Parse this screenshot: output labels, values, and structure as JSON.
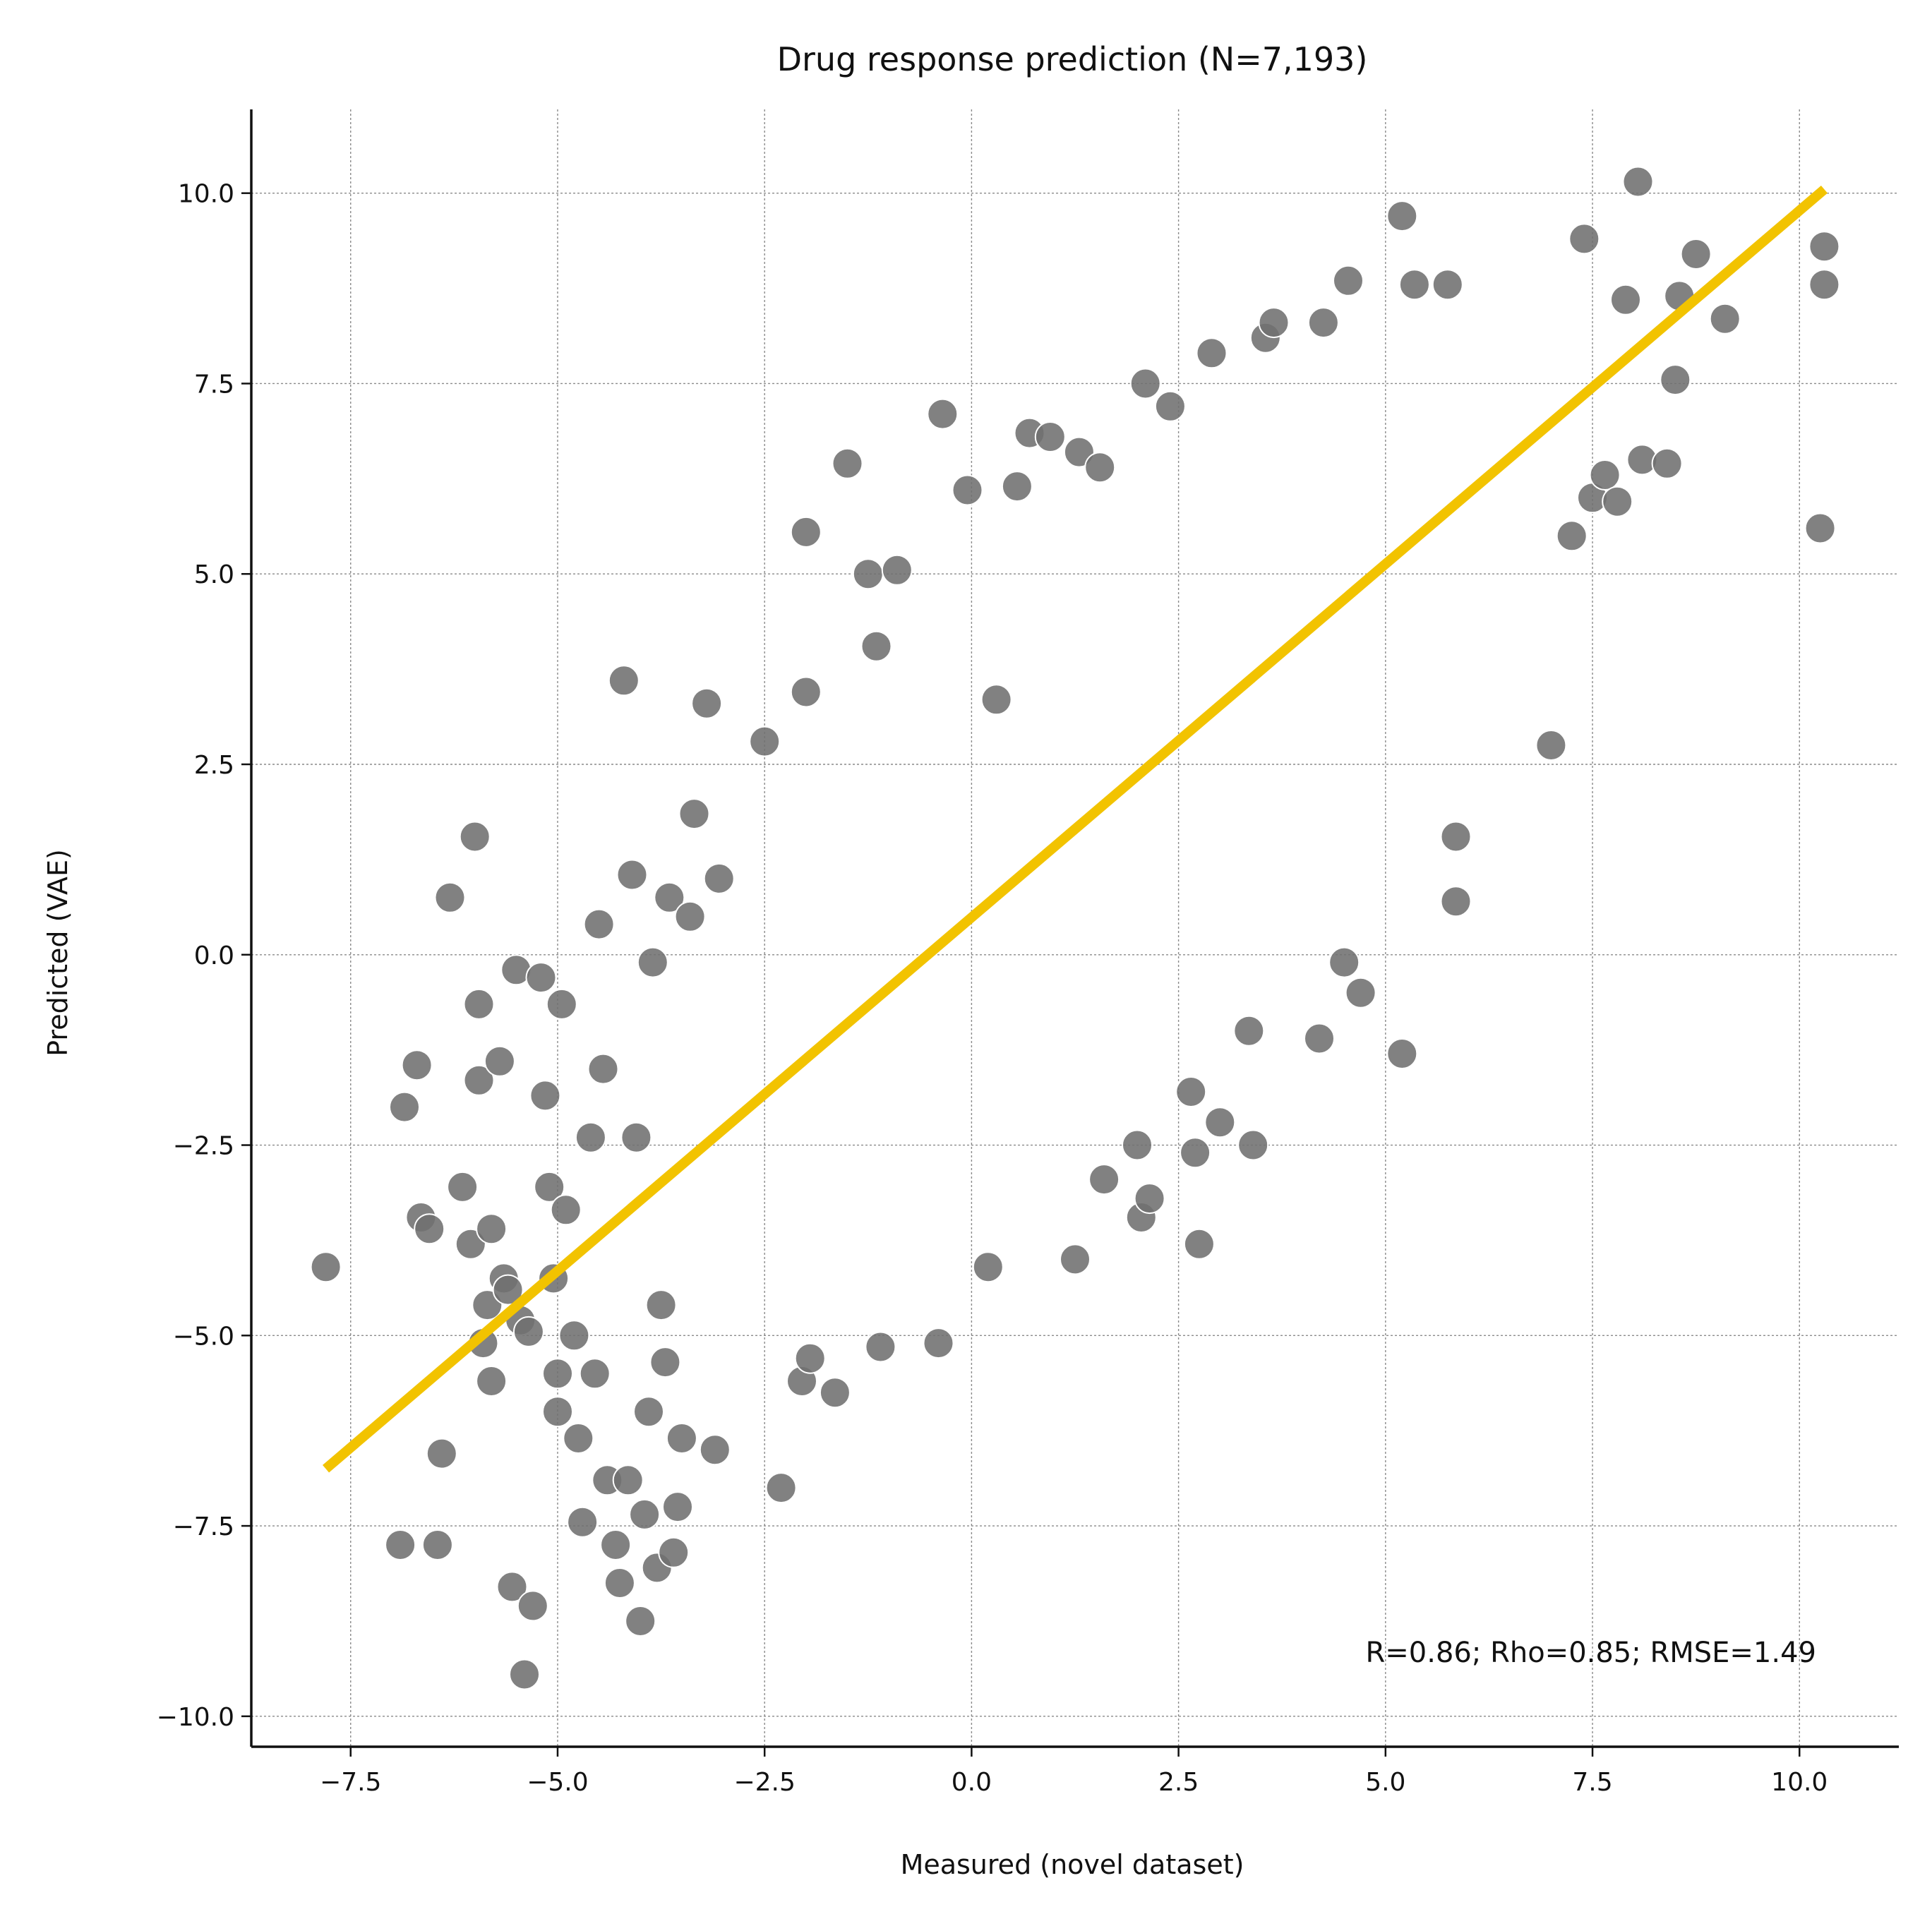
{
  "chart_data": {
    "type": "scatter",
    "title": "Drug response prediction (N=7,193)",
    "xlabel": "Measured (novel dataset)",
    "ylabel": "Predicted (VAE)",
    "xlim": [
      -8.7,
      11.2
    ],
    "ylim": [
      -10.4,
      11.1
    ],
    "xticks": [
      -7.5,
      -5.0,
      -2.5,
      0.0,
      2.5,
      5.0,
      7.5,
      10.0
    ],
    "yticks": [
      -10.0,
      -7.5,
      -5.0,
      -2.5,
      0.0,
      2.5,
      5.0,
      7.5,
      10.0
    ],
    "xtick_labels": [
      "−7.5",
      "−5.0",
      "−2.5",
      "0.0",
      "2.5",
      "5.0",
      "7.5",
      "10.0"
    ],
    "ytick_labels": [
      "−10.0",
      "−7.5",
      "−5.0",
      "−2.5",
      "0.0",
      "2.5",
      "5.0",
      "7.5",
      "10.0"
    ],
    "grid": true,
    "point_color": "#707070",
    "line_color": "#f2c300",
    "annotation": "R=0.86; Rho=0.85; RMSE=1.49",
    "fit_line": {
      "x": [
        -7.8,
        10.3
      ],
      "y": [
        -6.75,
        10.05
      ]
    },
    "series": [
      {
        "points": [
          [
            -7.8,
            -4.1
          ],
          [
            -6.9,
            -7.75
          ],
          [
            -6.85,
            -2.0
          ],
          [
            -6.7,
            -1.45
          ],
          [
            -6.65,
            -3.45
          ],
          [
            -6.55,
            -3.6
          ],
          [
            -6.45,
            -7.75
          ],
          [
            -6.4,
            -6.55
          ],
          [
            -6.3,
            0.75
          ],
          [
            -6.15,
            -3.05
          ],
          [
            -6.05,
            -3.8
          ],
          [
            -6.0,
            1.55
          ],
          [
            -5.95,
            -0.65
          ],
          [
            -5.95,
            -1.65
          ],
          [
            -5.9,
            -5.1
          ],
          [
            -5.85,
            -4.6
          ],
          [
            -5.8,
            -3.6
          ],
          [
            -5.8,
            -5.6
          ],
          [
            -5.7,
            -1.4
          ],
          [
            -5.65,
            -4.25
          ],
          [
            -5.6,
            -4.4
          ],
          [
            -5.55,
            -8.3
          ],
          [
            -5.5,
            -0.2
          ],
          [
            -5.45,
            -4.8
          ],
          [
            -5.4,
            -9.45
          ],
          [
            -5.35,
            -4.95
          ],
          [
            -5.3,
            -8.55
          ],
          [
            -5.2,
            -0.3
          ],
          [
            -5.15,
            -1.85
          ],
          [
            -5.1,
            -3.05
          ],
          [
            -5.05,
            -4.25
          ],
          [
            -5.0,
            -5.5
          ],
          [
            -5.0,
            -6.0
          ],
          [
            -4.95,
            -0.65
          ],
          [
            -4.9,
            -3.35
          ],
          [
            -4.8,
            -5.0
          ],
          [
            -4.75,
            -6.35
          ],
          [
            -4.7,
            -7.45
          ],
          [
            -4.6,
            -2.4
          ],
          [
            -4.55,
            -5.5
          ],
          [
            -4.5,
            0.4
          ],
          [
            -4.45,
            -1.5
          ],
          [
            -4.4,
            -6.9
          ],
          [
            -4.3,
            -7.75
          ],
          [
            -4.25,
            -8.25
          ],
          [
            -4.2,
            3.6
          ],
          [
            -4.15,
            -6.9
          ],
          [
            -4.1,
            1.05
          ],
          [
            -4.05,
            -2.4
          ],
          [
            -4.0,
            -8.75
          ],
          [
            -3.95,
            -7.35
          ],
          [
            -3.9,
            -6.0
          ],
          [
            -3.85,
            -0.1
          ],
          [
            -3.8,
            -8.05
          ],
          [
            -3.75,
            -4.6
          ],
          [
            -3.7,
            -5.35
          ],
          [
            -3.65,
            0.75
          ],
          [
            -3.6,
            -7.85
          ],
          [
            -3.55,
            -7.25
          ],
          [
            -3.5,
            -6.35
          ],
          [
            -3.4,
            0.5
          ],
          [
            -3.35,
            1.85
          ],
          [
            -3.2,
            3.3
          ],
          [
            -3.1,
            -6.5
          ],
          [
            -3.05,
            1.0
          ],
          [
            -2.5,
            2.8
          ],
          [
            -2.3,
            -7.0
          ],
          [
            -2.05,
            -5.6
          ],
          [
            -2.0,
            3.45
          ],
          [
            -2.0,
            5.55
          ],
          [
            -1.95,
            -5.3
          ],
          [
            -1.65,
            -5.75
          ],
          [
            -1.5,
            6.45
          ],
          [
            -1.25,
            5.0
          ],
          [
            -1.15,
            4.05
          ],
          [
            -1.1,
            -5.15
          ],
          [
            -0.9,
            5.05
          ],
          [
            -0.4,
            -5.1
          ],
          [
            -0.35,
            7.1
          ],
          [
            -0.05,
            6.1
          ],
          [
            0.2,
            -4.1
          ],
          [
            0.3,
            3.35
          ],
          [
            0.55,
            6.15
          ],
          [
            0.7,
            6.85
          ],
          [
            0.95,
            6.8
          ],
          [
            1.25,
            -4.0
          ],
          [
            1.3,
            6.6
          ],
          [
            1.55,
            6.4
          ],
          [
            1.6,
            -2.95
          ],
          [
            2.0,
            -2.5
          ],
          [
            2.05,
            -3.45
          ],
          [
            2.15,
            -3.2
          ],
          [
            2.1,
            7.5
          ],
          [
            2.4,
            7.2
          ],
          [
            2.65,
            -1.8
          ],
          [
            2.75,
            -3.8
          ],
          [
            2.7,
            -2.6
          ],
          [
            2.9,
            7.9
          ],
          [
            3.0,
            -2.2
          ],
          [
            3.4,
            -2.5
          ],
          [
            3.35,
            -1.0
          ],
          [
            3.55,
            8.1
          ],
          [
            3.65,
            8.3
          ],
          [
            4.2,
            -1.1
          ],
          [
            4.25,
            8.3
          ],
          [
            4.5,
            -0.1
          ],
          [
            4.55,
            8.85
          ],
          [
            4.7,
            -0.5
          ],
          [
            5.2,
            -1.3
          ],
          [
            5.2,
            9.7
          ],
          [
            5.35,
            8.8
          ],
          [
            5.75,
            8.8
          ],
          [
            5.85,
            0.7
          ],
          [
            5.85,
            1.55
          ],
          [
            7.0,
            2.75
          ],
          [
            7.25,
            5.5
          ],
          [
            7.4,
            9.4
          ],
          [
            7.5,
            6.0
          ],
          [
            7.65,
            6.3
          ],
          [
            7.8,
            5.95
          ],
          [
            7.9,
            8.6
          ],
          [
            8.05,
            10.15
          ],
          [
            8.1,
            6.5
          ],
          [
            8.4,
            6.45
          ],
          [
            8.5,
            7.55
          ],
          [
            8.55,
            8.65
          ],
          [
            8.75,
            9.2
          ],
          [
            9.1,
            8.35
          ],
          [
            10.25,
            5.6
          ],
          [
            10.3,
            9.3
          ],
          [
            10.3,
            8.8
          ]
        ]
      }
    ]
  }
}
